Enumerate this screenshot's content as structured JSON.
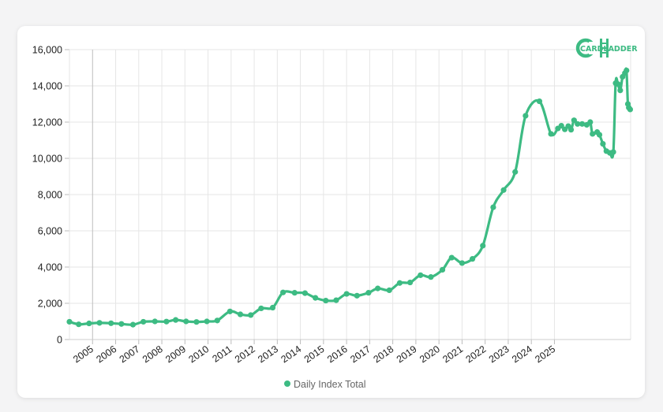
{
  "brand": {
    "logo_text": "CARDLADDER",
    "color": "#3dbb83"
  },
  "chart_data": {
    "type": "line",
    "series": [
      {
        "name": "Daily Index Total",
        "color": "#3dbb83",
        "points": [
          [
            2004.0,
            980
          ],
          [
            2004.4,
            840
          ],
          [
            2004.85,
            890
          ],
          [
            2005.3,
            920
          ],
          [
            2005.8,
            900
          ],
          [
            2006.25,
            860
          ],
          [
            2006.75,
            820
          ],
          [
            2007.2,
            980
          ],
          [
            2007.7,
            1000
          ],
          [
            2008.2,
            990
          ],
          [
            2008.6,
            1080
          ],
          [
            2009.05,
            1000
          ],
          [
            2009.5,
            970
          ],
          [
            2009.95,
            1000
          ],
          [
            2010.4,
            1050
          ],
          [
            2010.95,
            1550
          ],
          [
            2011.4,
            1390
          ],
          [
            2011.85,
            1350
          ],
          [
            2012.3,
            1720
          ],
          [
            2012.8,
            1760
          ],
          [
            2013.25,
            2600
          ],
          [
            2013.75,
            2580
          ],
          [
            2014.2,
            2560
          ],
          [
            2014.65,
            2300
          ],
          [
            2015.1,
            2150
          ],
          [
            2015.55,
            2170
          ],
          [
            2016.0,
            2520
          ],
          [
            2016.45,
            2420
          ],
          [
            2016.95,
            2580
          ],
          [
            2017.35,
            2820
          ],
          [
            2017.85,
            2720
          ],
          [
            2018.3,
            3120
          ],
          [
            2018.75,
            3150
          ],
          [
            2019.2,
            3550
          ],
          [
            2019.65,
            3450
          ],
          [
            2020.15,
            3850
          ],
          [
            2020.55,
            4520
          ],
          [
            2021.0,
            4220
          ],
          [
            2021.45,
            4450
          ],
          [
            2021.9,
            5180
          ],
          [
            2022.35,
            7300
          ],
          [
            2022.8,
            8250
          ],
          [
            2023.3,
            9250
          ],
          [
            2023.75,
            12350
          ],
          [
            2024.35,
            13150
          ],
          [
            2024.85,
            11350
          ],
          [
            2025.15,
            11650
          ],
          [
            2025.3,
            11800
          ],
          [
            2025.45,
            11600
          ],
          [
            2025.6,
            11780
          ],
          [
            2025.72,
            11580
          ],
          [
            2025.85,
            12100
          ],
          [
            2026.0,
            11900
          ],
          [
            2026.2,
            11900
          ],
          [
            2026.4,
            11850
          ],
          [
            2026.55,
            12000
          ],
          [
            2026.65,
            11350
          ],
          [
            2026.85,
            11450
          ],
          [
            2026.95,
            11300
          ],
          [
            2027.1,
            10800
          ],
          [
            2027.25,
            10400
          ],
          [
            2027.4,
            10300
          ],
          [
            2027.55,
            10350
          ],
          [
            2027.65,
            14150
          ],
          [
            2027.75,
            14100
          ],
          [
            2027.85,
            13750
          ],
          [
            2027.95,
            14500
          ],
          [
            2028.05,
            14700
          ],
          [
            2028.12,
            14850
          ],
          [
            2028.18,
            13000
          ],
          [
            2028.22,
            12800
          ],
          [
            2028.28,
            12700
          ]
        ]
      }
    ],
    "x_tick_labels": [
      "2005",
      "2006",
      "2007",
      "2008",
      "2009",
      "2010",
      "2011",
      "2012",
      "2013",
      "2014",
      "2015",
      "2016",
      "2017",
      "2018",
      "2019",
      "2020",
      "2021",
      "2022",
      "2023",
      "2024",
      "2025"
    ],
    "y_tick_labels": [
      "0",
      "2,000",
      "4,000",
      "6,000",
      "8,000",
      "10,000",
      "12,000",
      "14,000",
      "16,000"
    ],
    "ylim": [
      0,
      16000
    ],
    "grid": true,
    "legend_position": "bottom-center"
  }
}
